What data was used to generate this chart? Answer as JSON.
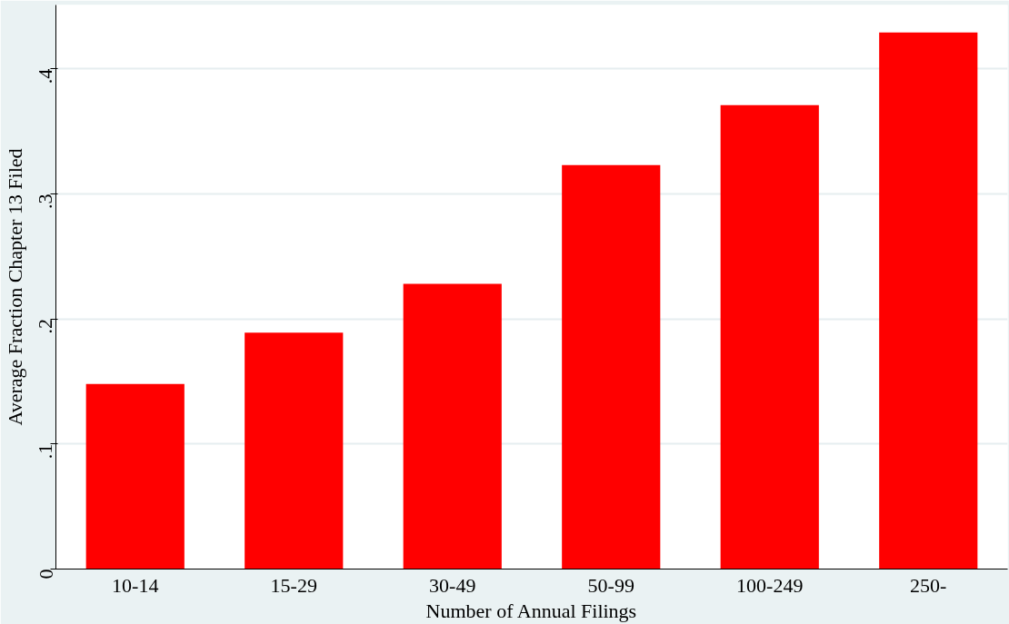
{
  "chart_data": {
    "type": "bar",
    "xlabel": "Number of Annual Filings",
    "ylabel": "Average Fraction Chapter 13 Filed",
    "categories": [
      "10-14",
      "15-29",
      "30-49",
      "50-99",
      "100-249",
      "250-"
    ],
    "values": [
      0.148,
      0.189,
      0.228,
      0.323,
      0.371,
      0.429
    ],
    "color": "#ff0000",
    "ylim": [
      0,
      0.451
    ],
    "yticks": [
      {
        "value": 0,
        "label": "0"
      },
      {
        "value": 0.1,
        "label": ".1"
      },
      {
        "value": 0.2,
        "label": ".2"
      },
      {
        "value": 0.3,
        "label": ".3"
      },
      {
        "value": 0.4,
        "label": ".4"
      }
    ],
    "grid": "y"
  }
}
